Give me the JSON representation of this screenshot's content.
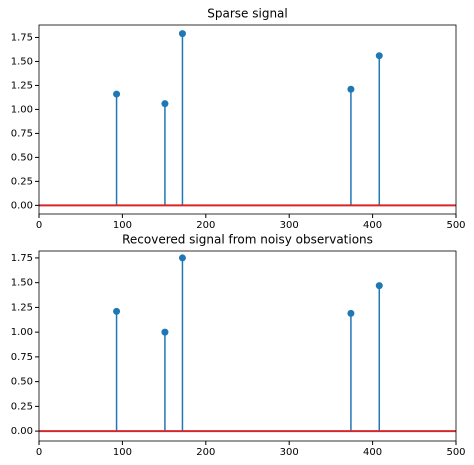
{
  "chart_data": [
    {
      "type": "stem",
      "title": "Sparse signal",
      "x": [
        93,
        151,
        172,
        374,
        408
      ],
      "values": [
        1.16,
        1.06,
        1.79,
        1.21,
        1.56
      ],
      "color": "#1f77b4",
      "baseline_color": "#d62728",
      "xlim": [
        0,
        500
      ],
      "xticks": [
        0,
        100,
        200,
        300,
        400,
        500
      ],
      "ylim": [
        -0.09,
        1.88
      ],
      "yticks": [
        {
          "value": 0,
          "label": "0.00"
        },
        {
          "value": 0.25,
          "label": "0.25"
        },
        {
          "value": 0.5,
          "label": "0.50"
        },
        {
          "value": 0.75,
          "label": "0.75"
        },
        {
          "value": 1,
          "label": "1.00"
        },
        {
          "value": 1.25,
          "label": "1.25"
        },
        {
          "value": 1.5,
          "label": "1.50"
        },
        {
          "value": 1.75,
          "label": "1.75"
        }
      ]
    },
    {
      "type": "stem",
      "title": "Recovered signal from noisy observations",
      "x": [
        93,
        151,
        172,
        374,
        408
      ],
      "values": [
        1.21,
        1.0,
        1.75,
        1.19,
        1.47
      ],
      "color": "#1f77b4",
      "baseline_color": "#d62728",
      "xlim": [
        0,
        500
      ],
      "xticks": [
        0,
        100,
        200,
        300,
        400,
        500
      ],
      "ylim": [
        -0.1,
        1.82
      ],
      "yticks": [
        {
          "value": 0,
          "label": "0.00"
        },
        {
          "value": 0.25,
          "label": "0.25"
        },
        {
          "value": 0.5,
          "label": "0.50"
        },
        {
          "value": 0.75,
          "label": "0.75"
        },
        {
          "value": 1,
          "label": "1.00"
        },
        {
          "value": 1.25,
          "label": "1.25"
        },
        {
          "value": 1.5,
          "label": "1.50"
        },
        {
          "value": 1.75,
          "label": "1.75"
        }
      ]
    }
  ]
}
